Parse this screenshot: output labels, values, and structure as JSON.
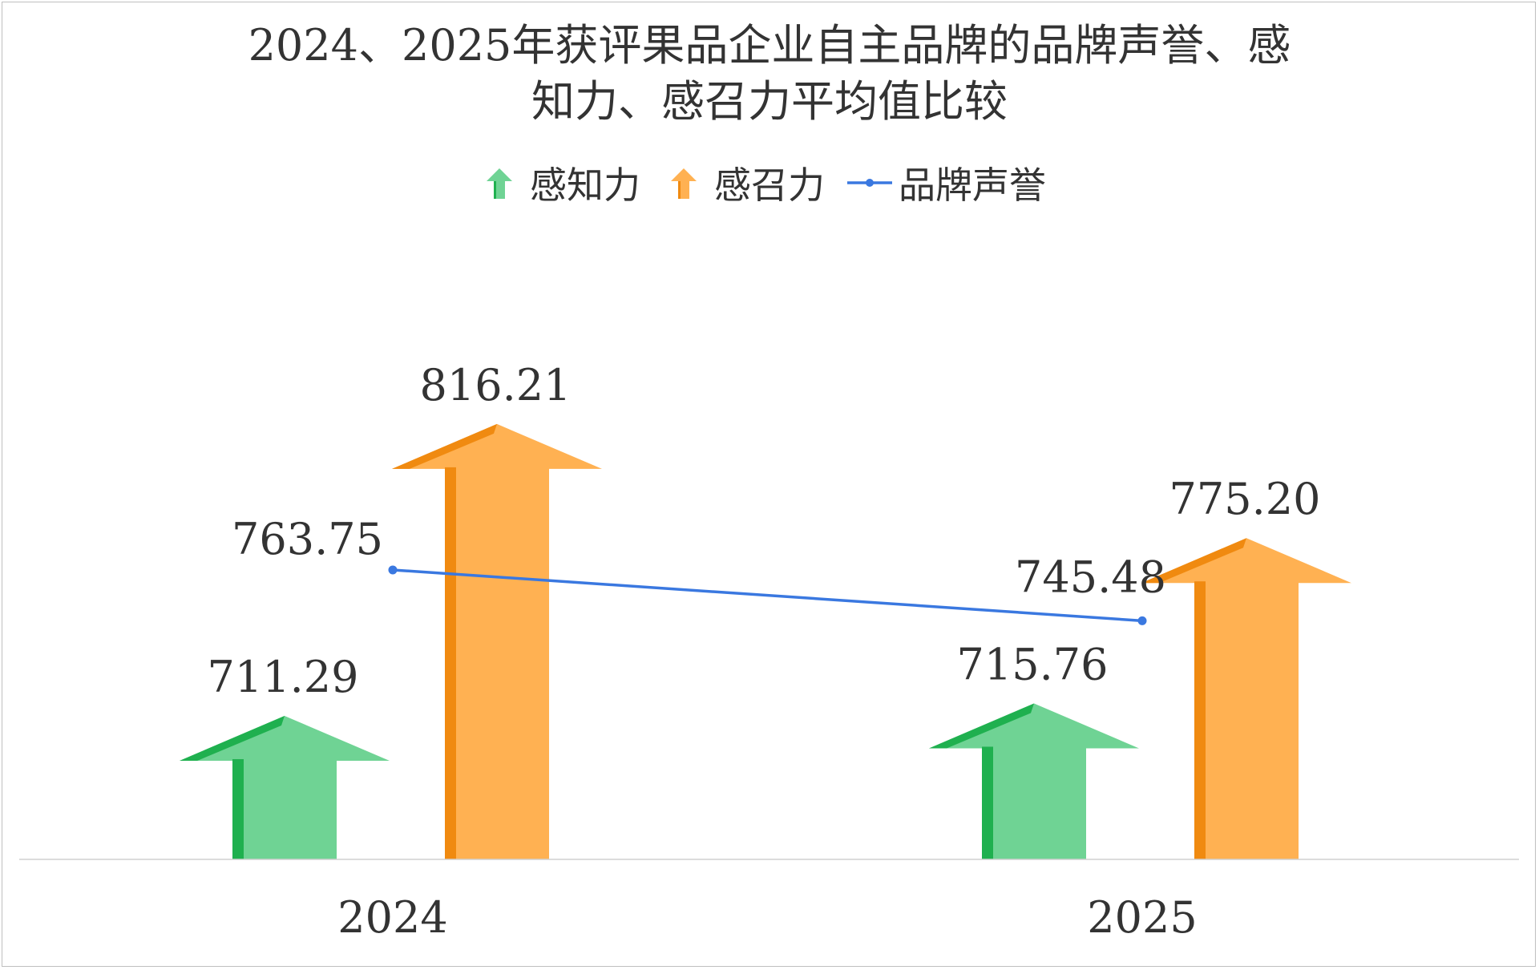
{
  "chart_data": {
    "type": "bar",
    "title_lines": [
      "2024、2025年获评果品企业自主品牌的品牌声誉、感",
      "知力、感召力平均值比较"
    ],
    "categories": [
      "2024",
      "2025"
    ],
    "series": [
      {
        "name": "感知力",
        "kind": "arrow",
        "values": [
          711.29,
          715.76
        ],
        "labels": [
          "711.29",
          "715.76"
        ],
        "color": "#6fd394",
        "shade": "#1fb04f"
      },
      {
        "name": "感召力",
        "kind": "arrow",
        "values": [
          816.21,
          775.2
        ],
        "labels": [
          "816.21",
          "775.20"
        ],
        "color": "#ffb152",
        "shade": "#f08a10"
      },
      {
        "name": "品牌声誉",
        "kind": "line",
        "values": [
          763.75,
          745.48
        ],
        "labels": [
          "763.75",
          "745.48"
        ],
        "color": "#3a78e0"
      }
    ],
    "legend_position": "top-center",
    "grid": false,
    "axis_visible": false
  }
}
